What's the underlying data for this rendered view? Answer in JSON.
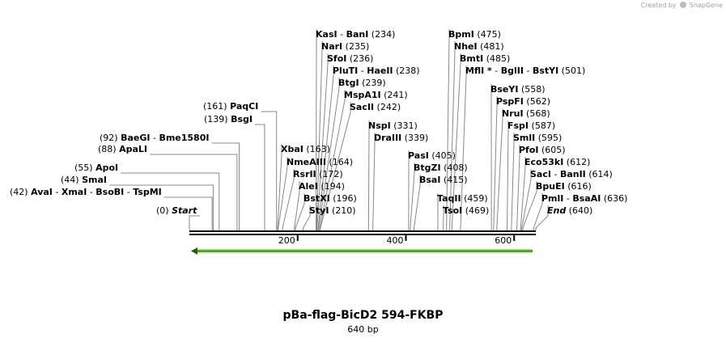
{
  "watermark": {
    "prefix": "Created by",
    "brand": "SnapGene"
  },
  "title": "pBa-flag-BicD2 594-FKBP",
  "length_label": "640 bp",
  "sequence_length": 640,
  "axis_ticks": [
    {
      "value": 200,
      "label": "200"
    },
    {
      "value": 400,
      "label": "400"
    },
    {
      "value": 600,
      "label": "600"
    }
  ],
  "feature": {
    "name": "forward-feature-arrow",
    "start": 1,
    "end": 640,
    "direction": "reverse",
    "color": "#7fd34a"
  },
  "labels": [
    {
      "id": "start",
      "parts": [
        {
          "pos": 0,
          "pos_label": "(0)"
        }
      ],
      "names": [
        "Start"
      ],
      "side": "left",
      "italic": true
    },
    {
      "id": "aval",
      "parts": [
        {
          "pos": 42,
          "pos_label": "(42)"
        }
      ],
      "names": [
        "AvaI",
        "XmaI",
        "BsoBI",
        "TspMI"
      ],
      "side": "left"
    },
    {
      "id": "smai",
      "parts": [
        {
          "pos": 44,
          "pos_label": "(44)"
        }
      ],
      "names": [
        "SmaI"
      ],
      "side": "left"
    },
    {
      "id": "apoi",
      "parts": [
        {
          "pos": 55,
          "pos_label": "(55)"
        }
      ],
      "names": [
        "ApoI"
      ],
      "side": "left"
    },
    {
      "id": "apali",
      "parts": [
        {
          "pos": 88,
          "pos_label": "(88)"
        }
      ],
      "names": [
        "ApaLI"
      ],
      "side": "left"
    },
    {
      "id": "baegi",
      "parts": [
        {
          "pos": 92,
          "pos_label": "(92)"
        }
      ],
      "names": [
        "BaeGI",
        "Bme1580I"
      ],
      "side": "left"
    },
    {
      "id": "bsgi",
      "parts": [
        {
          "pos": 139,
          "pos_label": "(139)"
        }
      ],
      "names": [
        "BsgI"
      ],
      "side": "left"
    },
    {
      "id": "paqci",
      "parts": [
        {
          "pos": 161,
          "pos_label": "(161)"
        }
      ],
      "names": [
        "PaqCI"
      ],
      "side": "left"
    },
    {
      "id": "xbai",
      "parts": [
        {
          "pos": 163,
          "pos_label": "(163)"
        }
      ],
      "names": [
        "XbaI"
      ],
      "side": "right"
    },
    {
      "id": "nmeaiii",
      "parts": [
        {
          "pos": 164,
          "pos_label": "(164)"
        }
      ],
      "names": [
        "NmeAIII"
      ],
      "side": "right"
    },
    {
      "id": "rsrii",
      "parts": [
        {
          "pos": 172,
          "pos_label": "(172)"
        }
      ],
      "names": [
        "RsrII"
      ],
      "side": "right"
    },
    {
      "id": "alei",
      "parts": [
        {
          "pos": 194,
          "pos_label": "(194)"
        }
      ],
      "names": [
        "AleI"
      ],
      "side": "right"
    },
    {
      "id": "bstxi",
      "parts": [
        {
          "pos": 196,
          "pos_label": "(196)"
        }
      ],
      "names": [
        "BstXI"
      ],
      "side": "right"
    },
    {
      "id": "styi",
      "parts": [
        {
          "pos": 210,
          "pos_label": "(210)"
        }
      ],
      "names": [
        "StyI"
      ],
      "side": "right"
    },
    {
      "id": "kasi",
      "parts": [
        {
          "pos": 234,
          "pos_label": "(234)"
        }
      ],
      "names": [
        "KasI",
        "BanI"
      ],
      "side": "right"
    },
    {
      "id": "nari",
      "parts": [
        {
          "pos": 235,
          "pos_label": "(235)"
        }
      ],
      "names": [
        "NarI"
      ],
      "side": "right"
    },
    {
      "id": "sfoi",
      "parts": [
        {
          "pos": 236,
          "pos_label": "(236)"
        }
      ],
      "names": [
        "SfoI"
      ],
      "side": "right"
    },
    {
      "id": "pluti",
      "parts": [
        {
          "pos": 238,
          "pos_label": "(238)"
        }
      ],
      "names": [
        "PluTI",
        "HaeII"
      ],
      "side": "right"
    },
    {
      "id": "btgi",
      "parts": [
        {
          "pos": 239,
          "pos_label": "(239)"
        }
      ],
      "names": [
        "BtgI"
      ],
      "side": "right"
    },
    {
      "id": "mspa1i",
      "parts": [
        {
          "pos": 241,
          "pos_label": "(241)"
        }
      ],
      "names": [
        "MspA1I"
      ],
      "side": "right"
    },
    {
      "id": "sacii",
      "parts": [
        {
          "pos": 242,
          "pos_label": "(242)"
        }
      ],
      "names": [
        "SacII"
      ],
      "side": "right"
    },
    {
      "id": "nspi",
      "parts": [
        {
          "pos": 331,
          "pos_label": "(331)"
        }
      ],
      "names": [
        "NspI"
      ],
      "side": "right"
    },
    {
      "id": "draiii",
      "parts": [
        {
          "pos": 339,
          "pos_label": "(339)"
        }
      ],
      "names": [
        "DraIII"
      ],
      "side": "right"
    },
    {
      "id": "pasi",
      "parts": [
        {
          "pos": 405,
          "pos_label": "(405)"
        }
      ],
      "names": [
        "PasI"
      ],
      "side": "right"
    },
    {
      "id": "btgzi",
      "parts": [
        {
          "pos": 408,
          "pos_label": "(408)"
        }
      ],
      "names": [
        "BtgZI"
      ],
      "side": "right"
    },
    {
      "id": "bsai",
      "parts": [
        {
          "pos": 415,
          "pos_label": "(415)"
        }
      ],
      "names": [
        "BsaI"
      ],
      "side": "right"
    },
    {
      "id": "taqii",
      "parts": [
        {
          "pos": 459,
          "pos_label": "(459)"
        }
      ],
      "names": [
        "TaqII"
      ],
      "side": "right"
    },
    {
      "id": "tsoi",
      "parts": [
        {
          "pos": 469,
          "pos_label": "(469)"
        }
      ],
      "names": [
        "TsoI"
      ],
      "side": "right"
    },
    {
      "id": "bpmi",
      "parts": [
        {
          "pos": 475,
          "pos_label": "(475)"
        }
      ],
      "names": [
        "BpmI"
      ],
      "side": "right"
    },
    {
      "id": "nhei",
      "parts": [
        {
          "pos": 481,
          "pos_label": "(481)"
        }
      ],
      "names": [
        "NheI"
      ],
      "side": "right"
    },
    {
      "id": "bmti",
      "parts": [
        {
          "pos": 485,
          "pos_label": "(485)"
        }
      ],
      "names": [
        "BmtI"
      ],
      "side": "right"
    },
    {
      "id": "mfli",
      "parts": [
        {
          "pos": 501,
          "pos_label": "(501)"
        }
      ],
      "names": [
        "MflI *",
        "BglII",
        "BstYI"
      ],
      "side": "right"
    },
    {
      "id": "bseyi",
      "parts": [
        {
          "pos": 558,
          "pos_label": "(558)"
        }
      ],
      "names": [
        "BseYI"
      ],
      "side": "right"
    },
    {
      "id": "pspfi",
      "parts": [
        {
          "pos": 562,
          "pos_label": "(562)"
        }
      ],
      "names": [
        "PspFI"
      ],
      "side": "right"
    },
    {
      "id": "nrui",
      "parts": [
        {
          "pos": 568,
          "pos_label": "(568)"
        }
      ],
      "names": [
        "NruI"
      ],
      "side": "right"
    },
    {
      "id": "fspi",
      "parts": [
        {
          "pos": 587,
          "pos_label": "(587)"
        }
      ],
      "names": [
        "FspI"
      ],
      "side": "right"
    },
    {
      "id": "smli",
      "parts": [
        {
          "pos": 595,
          "pos_label": "(595)"
        }
      ],
      "names": [
        "SmlI"
      ],
      "side": "right"
    },
    {
      "id": "pfoi",
      "parts": [
        {
          "pos": 605,
          "pos_label": "(605)"
        }
      ],
      "names": [
        "PfoI"
      ],
      "side": "right"
    },
    {
      "id": "eco53ki",
      "parts": [
        {
          "pos": 612,
          "pos_label": "(612)"
        }
      ],
      "names": [
        "Eco53kI"
      ],
      "side": "right"
    },
    {
      "id": "saci",
      "parts": [
        {
          "pos": 614,
          "pos_label": "(614)"
        }
      ],
      "names": [
        "SacI",
        "BanII"
      ],
      "side": "right"
    },
    {
      "id": "bpuei",
      "parts": [
        {
          "pos": 616,
          "pos_label": "(616)"
        }
      ],
      "names": [
        "BpuEI"
      ],
      "side": "right"
    },
    {
      "id": "pmli",
      "parts": [
        {
          "pos": 636,
          "pos_label": "(636)"
        }
      ],
      "names": [
        "PmlI",
        "BsaAI"
      ],
      "side": "right"
    },
    {
      "id": "end",
      "parts": [
        {
          "pos": 640,
          "pos_label": "(640)"
        }
      ],
      "names": [
        "End"
      ],
      "side": "right",
      "italic": true
    }
  ]
}
